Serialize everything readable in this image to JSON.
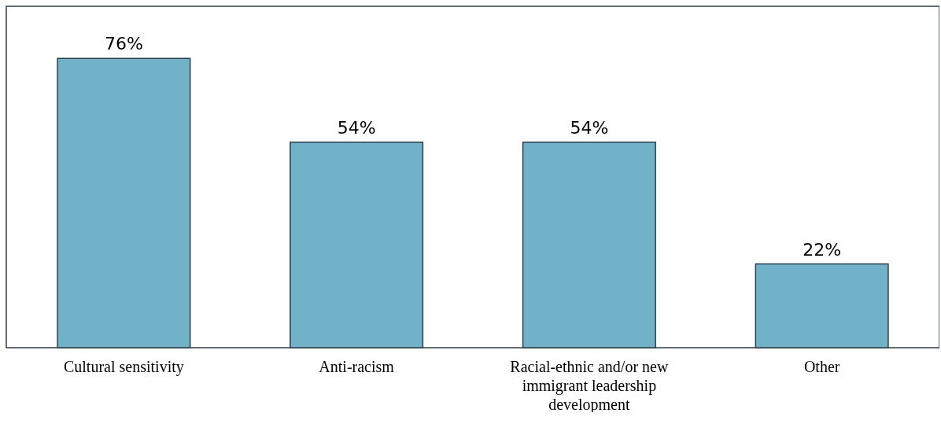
{
  "chart_data": {
    "type": "bar",
    "categories": [
      "Cultural sensitivity",
      "Anti-racism",
      "Racial-ethnic and/or new immigrant leadership development",
      "Other"
    ],
    "values": [
      76,
      54,
      54,
      22
    ],
    "value_labels": [
      "76%",
      "54%",
      "54%",
      "22%"
    ],
    "color": "#70b3c9"
  }
}
